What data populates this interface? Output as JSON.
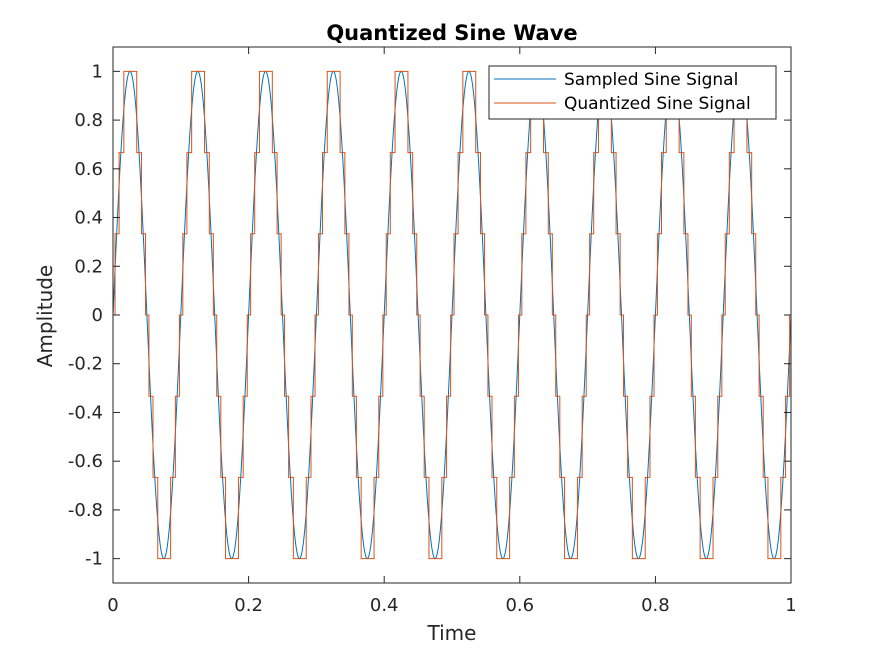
{
  "chart_data": {
    "type": "line",
    "title": "Quantized Sine Wave",
    "xlabel": "Time",
    "ylabel": "Amplitude",
    "xlim": [
      0,
      1
    ],
    "ylim": [
      -1.1,
      1.1
    ],
    "xticks": [
      0,
      0.2,
      0.4,
      0.6,
      0.8,
      1
    ],
    "xtick_labels": [
      "0",
      "0.2",
      "0.4",
      "0.6",
      "0.8",
      "1"
    ],
    "yticks": [
      -1,
      -0.8,
      -0.6,
      -0.4,
      -0.2,
      0,
      0.2,
      0.4,
      0.6,
      0.8,
      1
    ],
    "ytick_labels": [
      "-1",
      "-0.8",
      "-0.6",
      "-0.4",
      "-0.2",
      "0",
      "0.2",
      "0.4",
      "0.6",
      "0.8",
      "1"
    ],
    "grid": false,
    "legend_position": "top-right",
    "series": [
      {
        "name": "Sampled Sine Signal",
        "color": "#0072BD",
        "style": "line",
        "frequency_hz": 10,
        "amplitude": 1,
        "sample_interval": 0.001
      },
      {
        "name": "Quantized Sine Signal",
        "color": "#D95319",
        "style": "step",
        "frequency_hz": 10,
        "amplitude": 1,
        "sample_interval": 0.001,
        "quantization_levels": [
          -1,
          -0.6667,
          -0.3333,
          0,
          0.3333,
          0.6667,
          1
        ]
      }
    ]
  }
}
